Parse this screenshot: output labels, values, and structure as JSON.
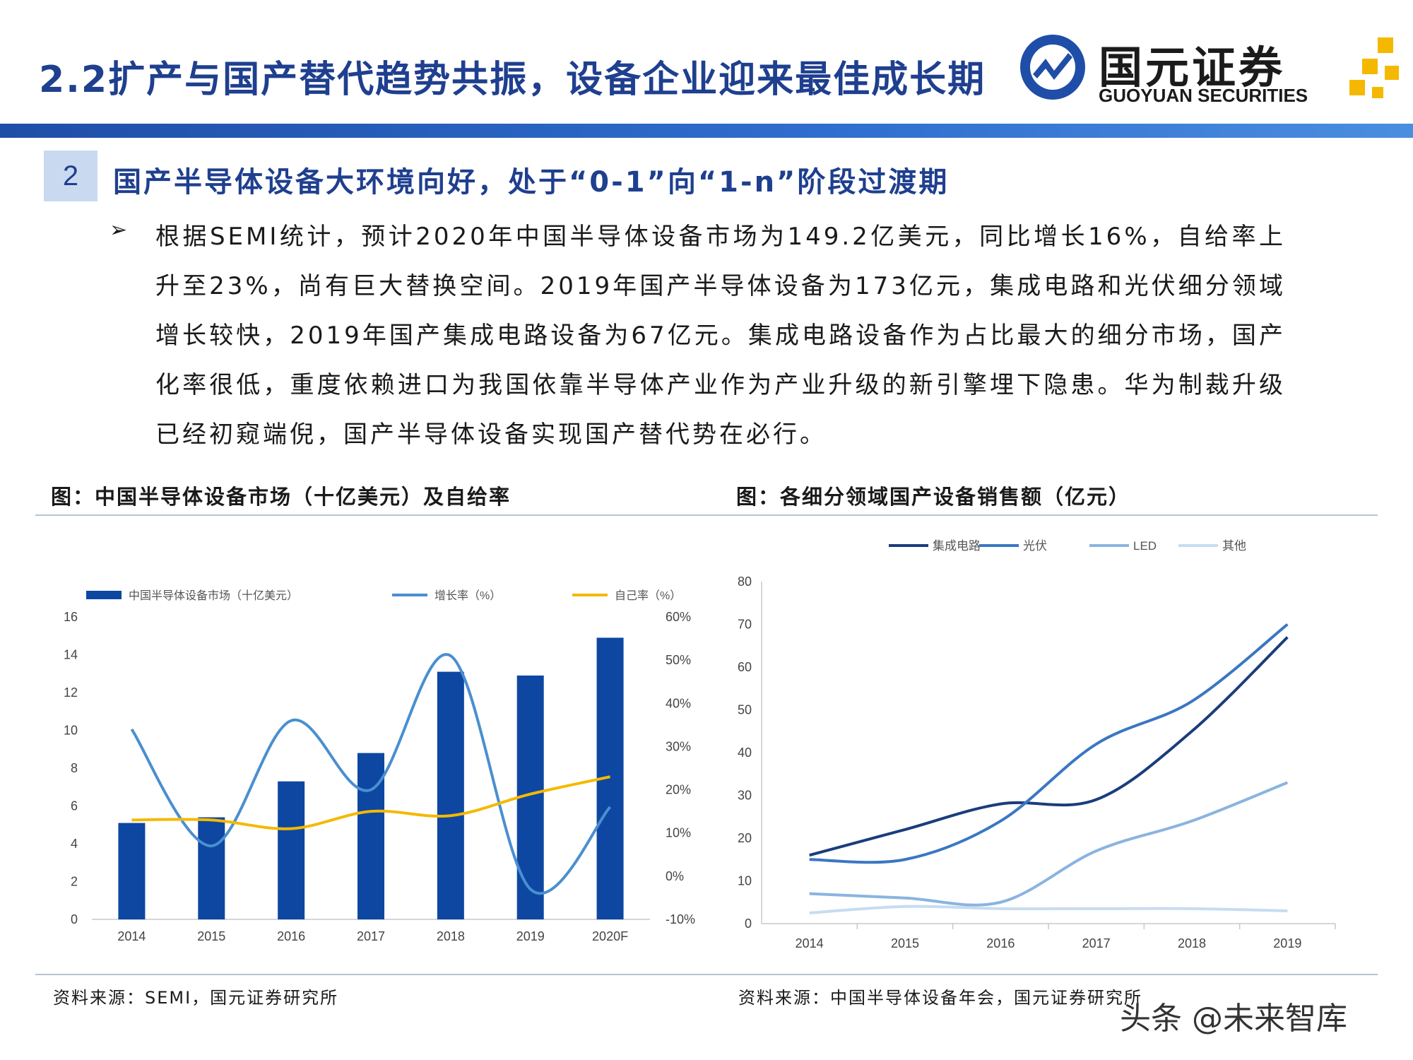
{
  "header": {
    "title": "2.2扩产与国产替代趋势共振，设备企业迎来最佳成长期",
    "logo_cn": "国元证券",
    "logo_en": "GUOYUAN SECURITIES",
    "accent_color": "#1f3f8f"
  },
  "section": {
    "number": "2",
    "title": "国产半导体设备大环境向好，处于“0-1”向“1-n”阶段过渡期"
  },
  "bullet": {
    "text": "根据SEMI统计，预计2020年中国半导体设备市场为149.2亿美元，同比增长16%，自给率上升至23%，尚有巨大替换空间。2019年国产半导体设备为173亿元，集成电路和光伏细分领域增长较快，2019年国产集成电路设备为67亿元。集成电路设备作为占比最大的细分市场，国产化率很低，重度依赖进口为我国依靠半导体产业作为产业升级的新引擎埋下隐患。华为制裁升级已经初窥端倪，国产半导体设备实现国产替代势在必行。"
  },
  "figures": {
    "left_title": "图：中国半导体设备市场（十亿美元）及自给率",
    "right_title": "图：各细分领域国产设备销售额（亿元）",
    "left_source": "资料来源：SEMI，国元证券研究所",
    "right_source": "资料来源：中国半导体设备年会，国元证券研究所"
  },
  "watermark": "头条 @未来智库",
  "chart_data": [
    {
      "type": "bar",
      "categories": [
        "2014",
        "2015",
        "2016",
        "2017",
        "2018",
        "2019",
        "2020F"
      ],
      "series": [
        {
          "name": "中国半导体设备市场（十亿美元）",
          "type": "bar",
          "axis": "left",
          "color": "#0d47a1",
          "values": [
            5.1,
            5.4,
            7.3,
            8.8,
            13.1,
            12.9,
            14.9
          ]
        },
        {
          "name": "增长率（%）",
          "type": "line",
          "axis": "right",
          "color": "#4a8fd0",
          "values": [
            34,
            7,
            36,
            20,
            51,
            -3,
            16
          ]
        },
        {
          "name": "自己率（%）",
          "type": "line",
          "axis": "right",
          "color": "#f5b800",
          "values": [
            13,
            13,
            11,
            15,
            14,
            19,
            23
          ]
        }
      ],
      "ylim": [
        0,
        16
      ],
      "yticks": [
        "0",
        "2",
        "4",
        "6",
        "8",
        "10",
        "12",
        "14",
        "16"
      ],
      "y2lim": [
        -10,
        60
      ],
      "y2ticks": [
        "-10%",
        "0%",
        "10%",
        "20%",
        "30%",
        "40%",
        "50%",
        "60%"
      ],
      "legend": "top",
      "grid": false
    },
    {
      "type": "line",
      "categories": [
        "2014",
        "2015",
        "2016",
        "2017",
        "2018",
        "2019"
      ],
      "series": [
        {
          "name": "集成电路",
          "color": "#1a3d7c",
          "values": [
            16,
            22,
            28,
            29,
            45,
            67
          ]
        },
        {
          "name": "光伏",
          "color": "#3a77c2",
          "values": [
            15,
            15,
            24,
            42,
            52,
            70
          ]
        },
        {
          "name": "LED",
          "color": "#8ab4e0",
          "values": [
            7,
            6,
            5,
            17,
            24,
            33
          ]
        },
        {
          "name": "其他",
          "color": "#c7dcf0",
          "values": [
            2.5,
            4,
            3.5,
            3.5,
            3.5,
            3
          ]
        }
      ],
      "ylim": [
        0,
        80
      ],
      "yticks": [
        "0",
        "10",
        "20",
        "30",
        "40",
        "50",
        "60",
        "70",
        "80"
      ],
      "legend": "top",
      "grid": false
    }
  ]
}
